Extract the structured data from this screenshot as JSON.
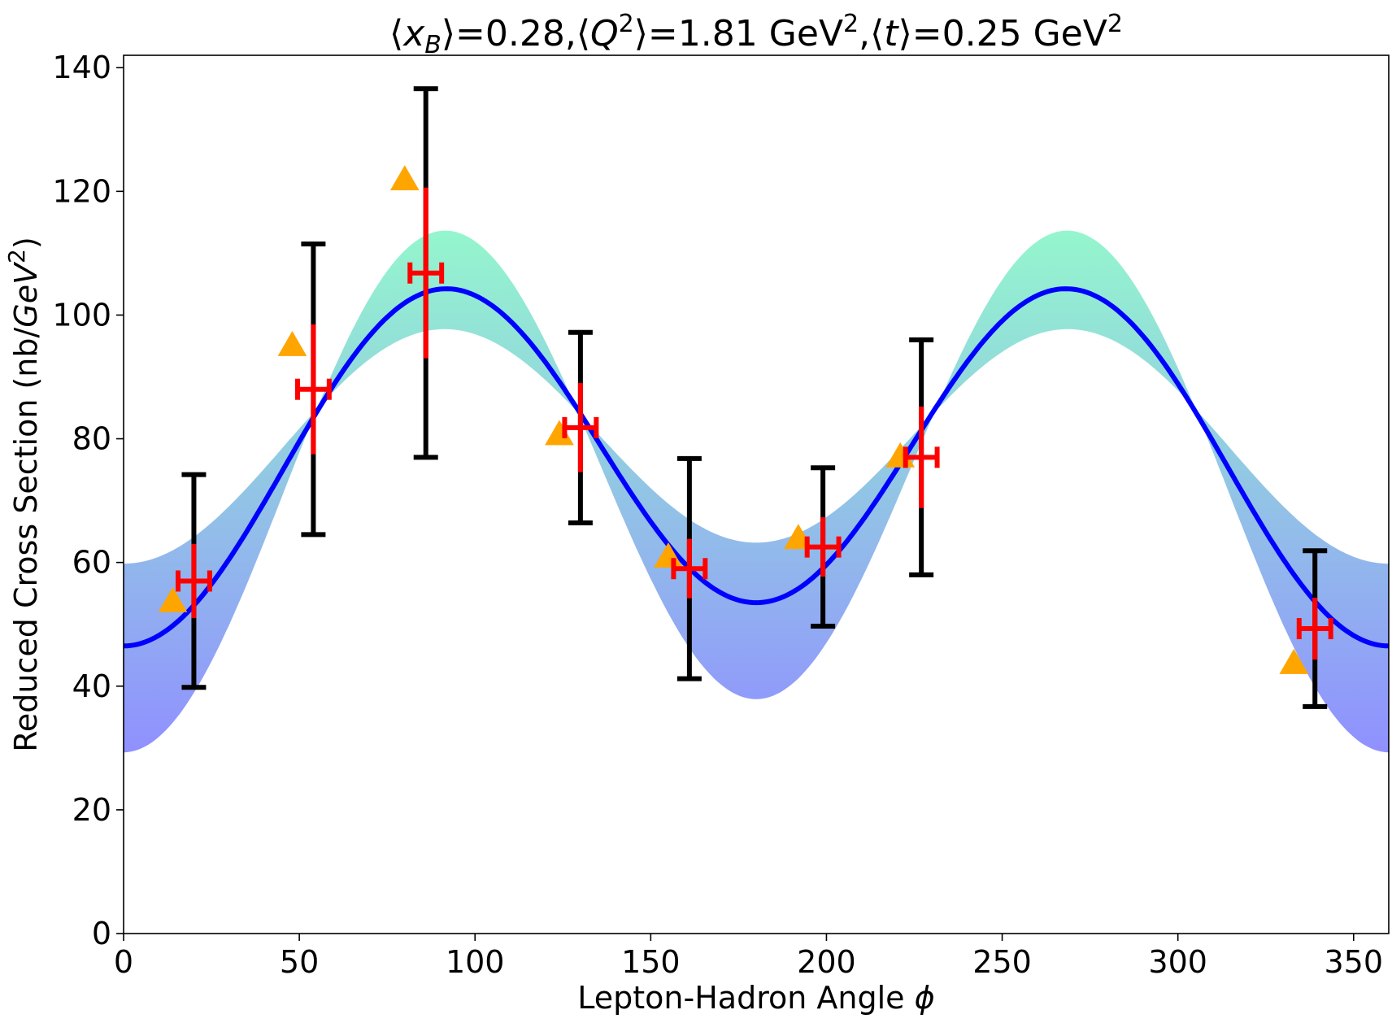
{
  "chart_data": {
    "type": "scatter",
    "title_parts": {
      "xb_value": "0.28",
      "q2_value": "1.81",
      "t_value": "0.25",
      "unit": "GeV",
      "exp": "2"
    },
    "xlabel": "Lepton-Hadron Angle",
    "xlabel_symbol": "ϕ",
    "ylabel": "Reduced Cross Section (nb/",
    "ylabel_unit": "GeV",
    "ylabel_exp": "2",
    "ylabel_close": ")",
    "xlim": [
      0,
      360
    ],
    "ylim": [
      0,
      142
    ],
    "x_ticks": [
      0,
      50,
      100,
      150,
      200,
      250,
      300,
      350
    ],
    "y_ticks": [
      0,
      20,
      40,
      60,
      80,
      100,
      120,
      140
    ],
    "grid": false,
    "legend": "none",
    "colors": {
      "fit_line": "#0000ff",
      "band_low": "#6b6bff",
      "band_high": "#66f2b8",
      "stat_error": "#ff0000",
      "syst_error": "#000000",
      "model_points": "#ffa500"
    },
    "fit_curve": {
      "model": "A + B*cos(phi) + C*cos(2*phi)",
      "A": 77.1,
      "B": -3.5,
      "C": -27.1
    },
    "band": {
      "green_edge": {
        "A": 79.6,
        "B": -1.7,
        "C": -18.1
      },
      "blue_edge": {
        "A": 73.6,
        "B": -4.3,
        "C": -40.0
      }
    },
    "data_points": [
      {
        "phi": 20.0,
        "y": 57.0,
        "x_err": 4.5,
        "stat_err": 6.0,
        "syst_err": 17.2
      },
      {
        "phi": 54.0,
        "y": 88.0,
        "x_err": 4.5,
        "stat_err": 10.5,
        "syst_err": 23.5
      },
      {
        "phi": 86.0,
        "y": 106.8,
        "x_err": 4.5,
        "stat_err": 13.8,
        "syst_err": 29.8
      },
      {
        "phi": 130.0,
        "y": 81.8,
        "x_err": 4.5,
        "stat_err": 7.2,
        "syst_err": 15.4
      },
      {
        "phi": 161.0,
        "y": 59.0,
        "x_err": 4.5,
        "stat_err": 4.8,
        "syst_err": 17.8
      },
      {
        "phi": 199.0,
        "y": 62.5,
        "x_err": 4.5,
        "stat_err": 4.8,
        "syst_err": 12.8
      },
      {
        "phi": 227.0,
        "y": 77.0,
        "x_err": 4.5,
        "stat_err": 8.2,
        "syst_err": 19.0
      },
      {
        "phi": 339.0,
        "y": 49.3,
        "x_err": 4.5,
        "stat_err": 5.0,
        "syst_err": 12.6
      }
    ],
    "model_points": [
      {
        "phi": 14.0,
        "y": 53.8
      },
      {
        "phi": 48.0,
        "y": 95.2
      },
      {
        "phi": 80.0,
        "y": 122.0
      },
      {
        "phi": 124.0,
        "y": 80.8
      },
      {
        "phi": 155.0,
        "y": 61.0
      },
      {
        "phi": 192.0,
        "y": 64.0
      },
      {
        "phi": 221.0,
        "y": 77.2
      },
      {
        "phi": 333.0,
        "y": 43.8
      }
    ]
  }
}
